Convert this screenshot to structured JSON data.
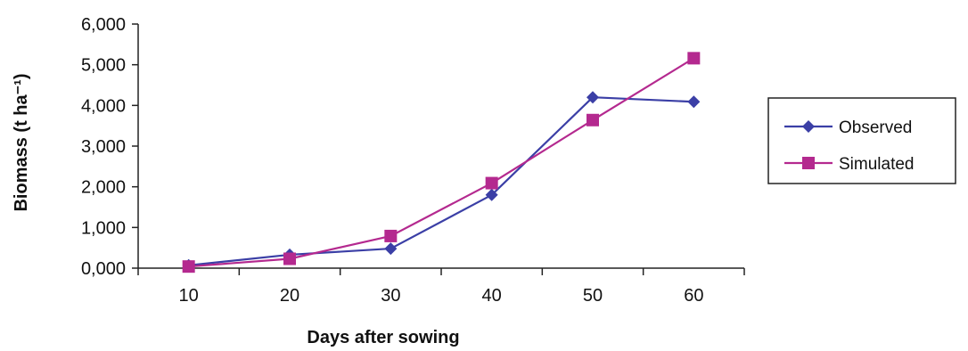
{
  "chart_data": {
    "type": "line",
    "title": "",
    "xlabel": "Days after sowing",
    "ylabel": "Biomass (t ha⁻¹)",
    "categories": [
      "10",
      "20",
      "30",
      "40",
      "50",
      "60"
    ],
    "yticks": [
      "0,000",
      "1,000",
      "2,000",
      "3,000",
      "4,000",
      "5,000",
      "6,000"
    ],
    "ylim": [
      0,
      6000
    ],
    "grid": false,
    "legend_position": "right",
    "series": [
      {
        "name": "Observed",
        "values": [
          70,
          330,
          480,
          1800,
          4200,
          4090
        ],
        "color": "#3b3fa6",
        "marker": "diamond"
      },
      {
        "name": "Simulated",
        "values": [
          40,
          230,
          790,
          2090,
          3640,
          5160
        ],
        "color": "#b4298f",
        "marker": "square"
      }
    ]
  }
}
